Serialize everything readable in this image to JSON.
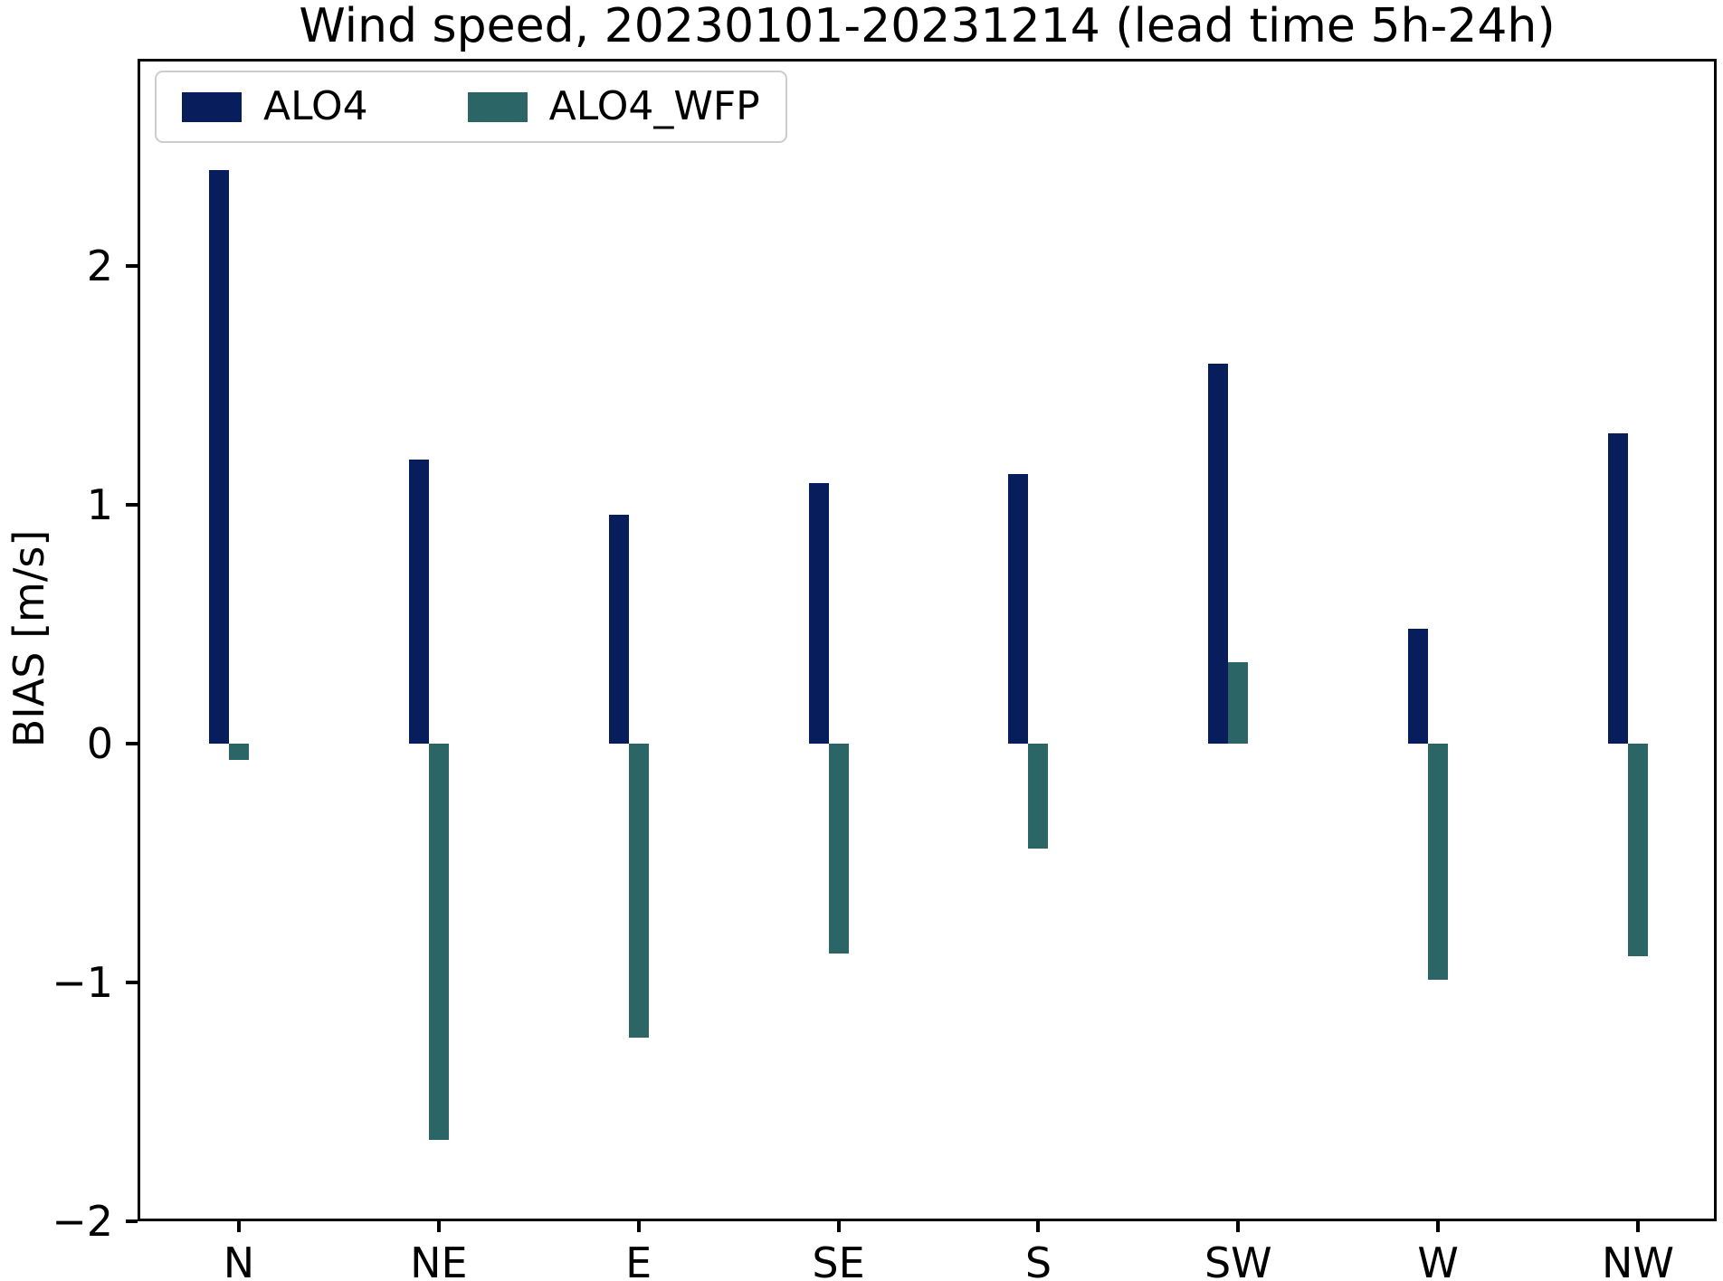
{
  "figure": {
    "title": "Wind speed, 20230101-20231214 (lead time 5h-24h)",
    "ylabel": "BIAS [m/s]"
  },
  "chart_data": {
    "type": "bar",
    "title": "Wind speed, 20230101-20231214 (lead time 5h-24h)",
    "xlabel": "",
    "ylabel": "BIAS [m/s]",
    "categories": [
      "N",
      "NE",
      "E",
      "SE",
      "S",
      "SW",
      "W",
      "NW"
    ],
    "series": [
      {
        "name": "ALO4",
        "color": "#081d5c",
        "values": [
          2.4,
          1.19,
          0.96,
          1.09,
          1.13,
          1.59,
          0.48,
          1.3
        ]
      },
      {
        "name": "ALO4_WFP",
        "color": "#2c6565",
        "values": [
          -0.07,
          -1.66,
          -1.23,
          -0.88,
          -0.44,
          0.34,
          -0.99,
          -0.89
        ]
      }
    ],
    "yticks": [
      {
        "value": 2,
        "label": "2"
      },
      {
        "value": 1,
        "label": "1"
      },
      {
        "value": 0,
        "label": "0"
      },
      {
        "value": -1,
        "label": "−1"
      },
      {
        "value": -2,
        "label": "−2"
      }
    ],
    "ylim": [
      -2.0,
      2.87
    ],
    "grid": false,
    "legend_position": "upper left"
  }
}
